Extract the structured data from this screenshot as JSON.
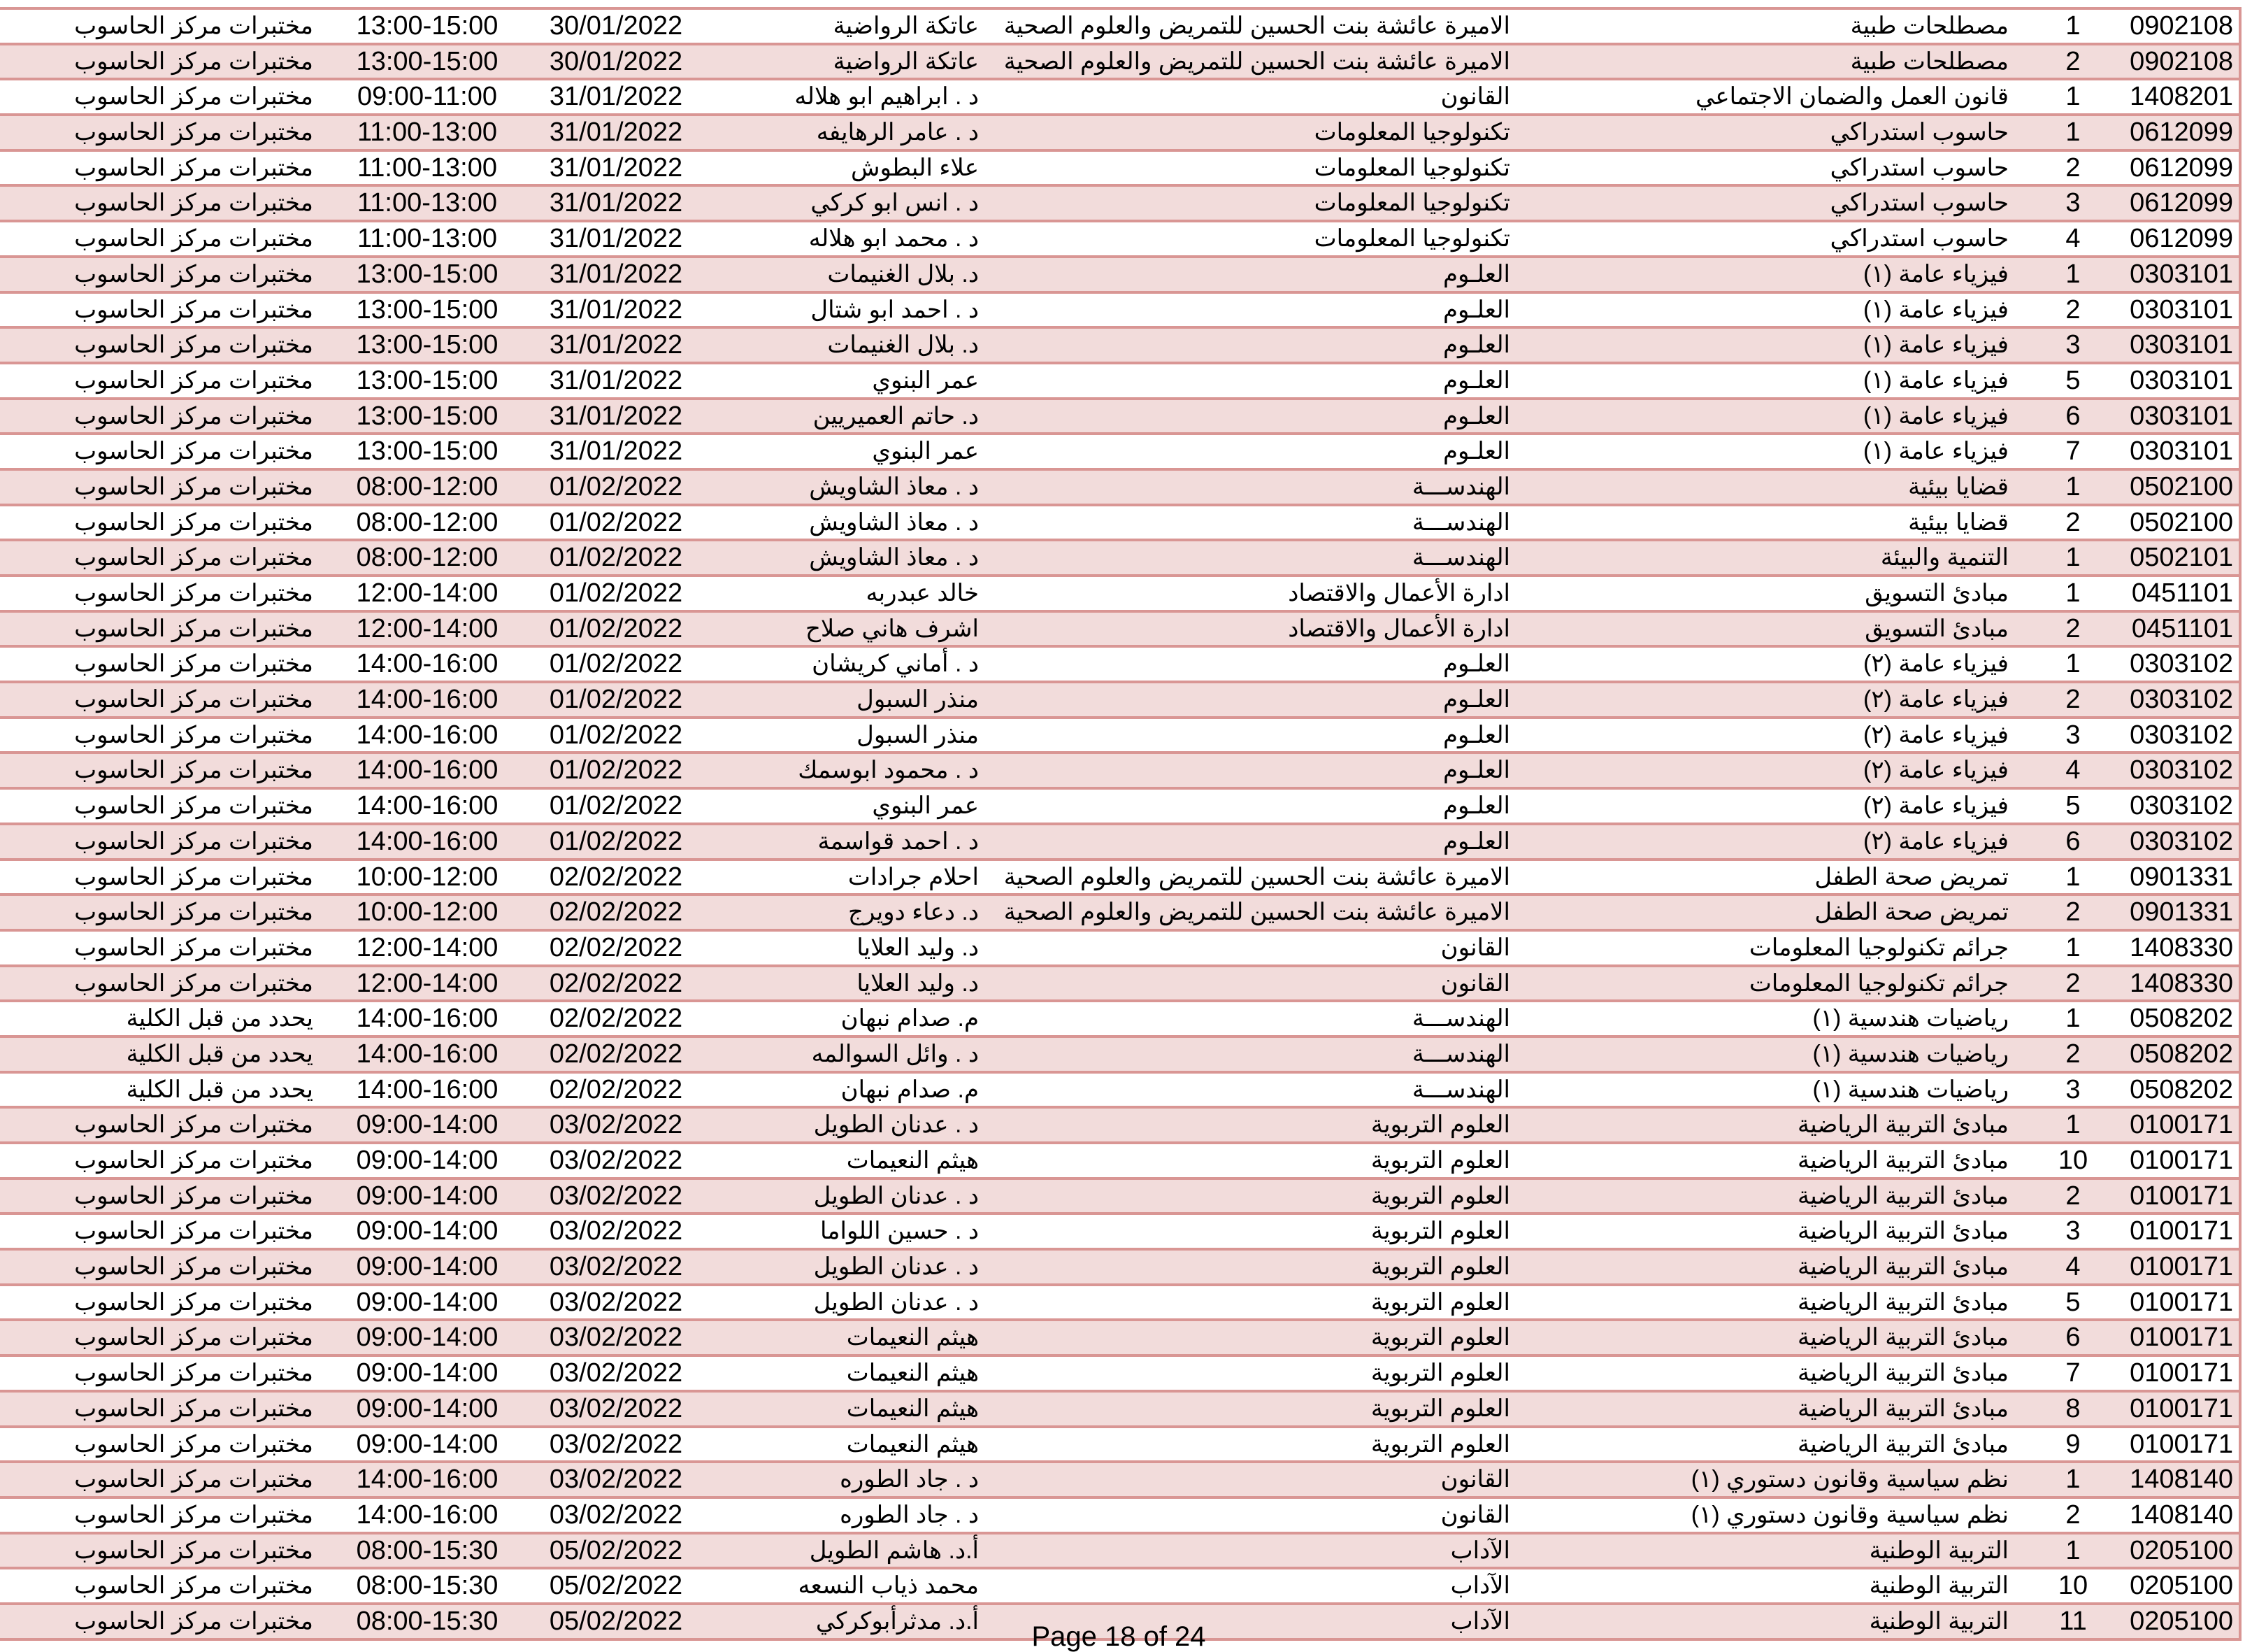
{
  "colors": {
    "border": "#d99694",
    "row_shade": "#f2dcdb"
  },
  "rows": [
    [
      "0902108",
      "1",
      "مصطلحات طبية",
      "الاميرة عائشة بنت الحسين للتمريض والعلوم الصحية",
      "عاتكة الرواضية",
      "30/01/2022",
      "13:00-15:00",
      "مختبرات مركز الحاسوب"
    ],
    [
      "0902108",
      "2",
      "مصطلحات طبية",
      "الاميرة عائشة بنت الحسين للتمريض والعلوم الصحية",
      "عاتكة الرواضية",
      "30/01/2022",
      "13:00-15:00",
      "مختبرات مركز الحاسوب"
    ],
    [
      "1408201",
      "1",
      "قانون العمل والضمان الاجتماعي",
      "القانون",
      "د . ابراهيم ابو هلاله",
      "31/01/2022",
      "09:00-11:00",
      "مختبرات مركز الحاسوب"
    ],
    [
      "0612099",
      "1",
      "حاسوب استدراكي",
      "تكنولوجيا المعلومات",
      "د . عامر الرهايفه",
      "31/01/2022",
      "11:00-13:00",
      "مختبرات مركز الحاسوب"
    ],
    [
      "0612099",
      "2",
      "حاسوب استدراكي",
      "تكنولوجيا المعلومات",
      "علاء البطوش",
      "31/01/2022",
      "11:00-13:00",
      "مختبرات مركز الحاسوب"
    ],
    [
      "0612099",
      "3",
      "حاسوب استدراكي",
      "تكنولوجيا المعلومات",
      "د . انس ابو كركي",
      "31/01/2022",
      "11:00-13:00",
      "مختبرات مركز الحاسوب"
    ],
    [
      "0612099",
      "4",
      "حاسوب استدراكي",
      "تكنولوجيا المعلومات",
      "د . محمد ابو هلاله",
      "31/01/2022",
      "11:00-13:00",
      "مختبرات مركز الحاسوب"
    ],
    [
      "0303101",
      "1",
      "فيزياء عامة (١)",
      "العلـوم",
      "د. بلال الغنيمات",
      "31/01/2022",
      "13:00-15:00",
      "مختبرات مركز الحاسوب"
    ],
    [
      "0303101",
      "2",
      "فيزياء عامة (١)",
      "العلـوم",
      "د . احمد ابو شتال",
      "31/01/2022",
      "13:00-15:00",
      "مختبرات مركز الحاسوب"
    ],
    [
      "0303101",
      "3",
      "فيزياء عامة (١)",
      "العلـوم",
      "د. بلال الغنيمات",
      "31/01/2022",
      "13:00-15:00",
      "مختبرات مركز الحاسوب"
    ],
    [
      "0303101",
      "5",
      "فيزياء عامة (١)",
      "العلـوم",
      "عمر البنوي",
      "31/01/2022",
      "13:00-15:00",
      "مختبرات مركز الحاسوب"
    ],
    [
      "0303101",
      "6",
      "فيزياء عامة (١)",
      "العلـوم",
      "د. حاتم العميريين",
      "31/01/2022",
      "13:00-15:00",
      "مختبرات مركز الحاسوب"
    ],
    [
      "0303101",
      "7",
      "فيزياء عامة (١)",
      "العلـوم",
      "عمر البنوي",
      "31/01/2022",
      "13:00-15:00",
      "مختبرات مركز الحاسوب"
    ],
    [
      "0502100",
      "1",
      "قضايا بيئية",
      "الهندســـة",
      "د . معاذ الشاويش",
      "01/02/2022",
      "08:00-12:00",
      "مختبرات مركز الحاسوب"
    ],
    [
      "0502100",
      "2",
      "قضايا بيئية",
      "الهندســـة",
      "د . معاذ الشاويش",
      "01/02/2022",
      "08:00-12:00",
      "مختبرات مركز الحاسوب"
    ],
    [
      "0502101",
      "1",
      "التنمية والبيئة",
      "الهندســـة",
      "د . معاذ الشاويش",
      "01/02/2022",
      "08:00-12:00",
      "مختبرات مركز الحاسوب"
    ],
    [
      "0451101",
      "1",
      "مبادئ التسويق",
      "ادارة الأعمال والاقتصاد",
      "خالد عبدربه",
      "01/02/2022",
      "12:00-14:00",
      "مختبرات مركز الحاسوب"
    ],
    [
      "0451101",
      "2",
      "مبادئ التسويق",
      "ادارة الأعمال والاقتصاد",
      "اشرف هاني صلاح",
      "01/02/2022",
      "12:00-14:00",
      "مختبرات مركز الحاسوب"
    ],
    [
      "0303102",
      "1",
      "فيزياء عامة (٢)",
      "العلـوم",
      "د . أماني كريشان",
      "01/02/2022",
      "14:00-16:00",
      "مختبرات مركز الحاسوب"
    ],
    [
      "0303102",
      "2",
      "فيزياء عامة (٢)",
      "العلـوم",
      "منذر السبول",
      "01/02/2022",
      "14:00-16:00",
      "مختبرات مركز الحاسوب"
    ],
    [
      "0303102",
      "3",
      "فيزياء عامة (٢)",
      "العلـوم",
      "منذر السبول",
      "01/02/2022",
      "14:00-16:00",
      "مختبرات مركز الحاسوب"
    ],
    [
      "0303102",
      "4",
      "فيزياء عامة (٢)",
      "العلـوم",
      "د . محمود ابوسمك",
      "01/02/2022",
      "14:00-16:00",
      "مختبرات مركز الحاسوب"
    ],
    [
      "0303102",
      "5",
      "فيزياء عامة (٢)",
      "العلـوم",
      "عمر البنوي",
      "01/02/2022",
      "14:00-16:00",
      "مختبرات مركز الحاسوب"
    ],
    [
      "0303102",
      "6",
      "فيزياء عامة (٢)",
      "العلـوم",
      "د . احمد قواسمة",
      "01/02/2022",
      "14:00-16:00",
      "مختبرات مركز الحاسوب"
    ],
    [
      "0901331",
      "1",
      "تمريض صحة الطفل",
      "الاميرة عائشة بنت الحسين للتمريض والعلوم الصحية",
      "احلام جرادات",
      "02/02/2022",
      "10:00-12:00",
      "مختبرات مركز الحاسوب"
    ],
    [
      "0901331",
      "2",
      "تمريض صحة الطفل",
      "الاميرة عائشة بنت الحسين للتمريض والعلوم الصحية",
      "د. دعاء دويرج",
      "02/02/2022",
      "10:00-12:00",
      "مختبرات مركز الحاسوب"
    ],
    [
      "1408330",
      "1",
      "جرائم تكنولوجيا المعلومات",
      "القانون",
      "د. وليد العلايا",
      "02/02/2022",
      "12:00-14:00",
      "مختبرات مركز الحاسوب"
    ],
    [
      "1408330",
      "2",
      "جرائم تكنولوجيا المعلومات",
      "القانون",
      "د. وليد العلايا",
      "02/02/2022",
      "12:00-14:00",
      "مختبرات مركز الحاسوب"
    ],
    [
      "0508202",
      "1",
      "رياضيات هندسية (١)",
      "الهندســـة",
      "م. صدام نبهان",
      "02/02/2022",
      "14:00-16:00",
      "يحدد من قبل الكلية"
    ],
    [
      "0508202",
      "2",
      "رياضيات هندسية (١)",
      "الهندســـة",
      "د . وائل السوالمه",
      "02/02/2022",
      "14:00-16:00",
      "يحدد من قبل الكلية"
    ],
    [
      "0508202",
      "3",
      "رياضيات هندسية (١)",
      "الهندســـة",
      "م. صدام نبهان",
      "02/02/2022",
      "14:00-16:00",
      "يحدد من قبل الكلية"
    ],
    [
      "0100171",
      "1",
      "مبادئ التربية الرياضية",
      "العلوم التربوية",
      "د . عدنان الطويل",
      "03/02/2022",
      "09:00-14:00",
      "مختبرات مركز الحاسوب"
    ],
    [
      "0100171",
      "10",
      "مبادئ التربية الرياضية",
      "العلوم التربوية",
      "هيثم النعيمات",
      "03/02/2022",
      "09:00-14:00",
      "مختبرات مركز الحاسوب"
    ],
    [
      "0100171",
      "2",
      "مبادئ التربية الرياضية",
      "العلوم التربوية",
      "د . عدنان الطويل",
      "03/02/2022",
      "09:00-14:00",
      "مختبرات مركز الحاسوب"
    ],
    [
      "0100171",
      "3",
      "مبادئ التربية الرياضية",
      "العلوم التربوية",
      "د . حسين اللواما",
      "03/02/2022",
      "09:00-14:00",
      "مختبرات مركز الحاسوب"
    ],
    [
      "0100171",
      "4",
      "مبادئ التربية الرياضية",
      "العلوم التربوية",
      "د . عدنان الطويل",
      "03/02/2022",
      "09:00-14:00",
      "مختبرات مركز الحاسوب"
    ],
    [
      "0100171",
      "5",
      "مبادئ التربية الرياضية",
      "العلوم التربوية",
      "د . عدنان الطويل",
      "03/02/2022",
      "09:00-14:00",
      "مختبرات مركز الحاسوب"
    ],
    [
      "0100171",
      "6",
      "مبادئ التربية الرياضية",
      "العلوم التربوية",
      "هيثم النعيمات",
      "03/02/2022",
      "09:00-14:00",
      "مختبرات مركز الحاسوب"
    ],
    [
      "0100171",
      "7",
      "مبادئ التربية الرياضية",
      "العلوم التربوية",
      "هيثم النعيمات",
      "03/02/2022",
      "09:00-14:00",
      "مختبرات مركز الحاسوب"
    ],
    [
      "0100171",
      "8",
      "مبادئ التربية الرياضية",
      "العلوم التربوية",
      "هيثم النعيمات",
      "03/02/2022",
      "09:00-14:00",
      "مختبرات مركز الحاسوب"
    ],
    [
      "0100171",
      "9",
      "مبادئ التربية الرياضية",
      "العلوم التربوية",
      "هيثم النعيمات",
      "03/02/2022",
      "09:00-14:00",
      "مختبرات مركز الحاسوب"
    ],
    [
      "1408140",
      "1",
      "نظم سياسية وقانون دستوري (١)",
      "القانون",
      "د . جاد الطوره",
      "03/02/2022",
      "14:00-16:00",
      "مختبرات مركز الحاسوب"
    ],
    [
      "1408140",
      "2",
      "نظم سياسية وقانون دستوري (١)",
      "القانون",
      "د . جاد الطوره",
      "03/02/2022",
      "14:00-16:00",
      "مختبرات مركز الحاسوب"
    ],
    [
      "0205100",
      "1",
      "التربية الوطنية",
      "الآداب",
      "أ.د. هاشم الطويل",
      "05/02/2022",
      "08:00-15:30",
      "مختبرات مركز الحاسوب"
    ],
    [
      "0205100",
      "10",
      "التربية الوطنية",
      "الآداب",
      "محمد ذياب النسعه",
      "05/02/2022",
      "08:00-15:30",
      "مختبرات مركز الحاسوب"
    ],
    [
      "0205100",
      "11",
      "التربية الوطنية",
      "الآداب",
      "أ.د. مدثرأبوكركي",
      "05/02/2022",
      "08:00-15:30",
      "مختبرات مركز الحاسوب"
    ]
  ],
  "footer": {
    "page_label": "Page 18 of 24"
  }
}
